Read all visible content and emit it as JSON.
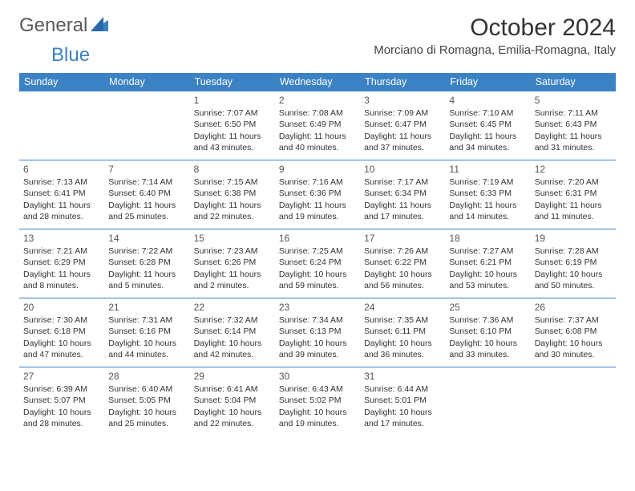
{
  "logo": {
    "text1": "General",
    "text2": "Blue"
  },
  "title": "October 2024",
  "location": "Morciano di Romagna, Emilia-Romagna, Italy",
  "colors": {
    "header_bg": "#3b82c4",
    "header_text": "#ffffff",
    "row_border": "#3b82c4",
    "body_text": "#333333",
    "logo_gray": "#5a5a5a",
    "logo_blue": "#3b82c4",
    "background": "#ffffff"
  },
  "fonts": {
    "month_title_size": 30,
    "location_size": 15,
    "day_header_size": 12.5,
    "daynum_size": 12,
    "cell_size": 10.5
  },
  "day_headers": [
    "Sunday",
    "Monday",
    "Tuesday",
    "Wednesday",
    "Thursday",
    "Friday",
    "Saturday"
  ],
  "weeks": [
    [
      null,
      null,
      {
        "n": "1",
        "sr": "Sunrise: 7:07 AM",
        "ss": "Sunset: 6:50 PM",
        "dl": "Daylight: 11 hours and 43 minutes."
      },
      {
        "n": "2",
        "sr": "Sunrise: 7:08 AM",
        "ss": "Sunset: 6:49 PM",
        "dl": "Daylight: 11 hours and 40 minutes."
      },
      {
        "n": "3",
        "sr": "Sunrise: 7:09 AM",
        "ss": "Sunset: 6:47 PM",
        "dl": "Daylight: 11 hours and 37 minutes."
      },
      {
        "n": "4",
        "sr": "Sunrise: 7:10 AM",
        "ss": "Sunset: 6:45 PM",
        "dl": "Daylight: 11 hours and 34 minutes."
      },
      {
        "n": "5",
        "sr": "Sunrise: 7:11 AM",
        "ss": "Sunset: 6:43 PM",
        "dl": "Daylight: 11 hours and 31 minutes."
      }
    ],
    [
      {
        "n": "6",
        "sr": "Sunrise: 7:13 AM",
        "ss": "Sunset: 6:41 PM",
        "dl": "Daylight: 11 hours and 28 minutes."
      },
      {
        "n": "7",
        "sr": "Sunrise: 7:14 AM",
        "ss": "Sunset: 6:40 PM",
        "dl": "Daylight: 11 hours and 25 minutes."
      },
      {
        "n": "8",
        "sr": "Sunrise: 7:15 AM",
        "ss": "Sunset: 6:38 PM",
        "dl": "Daylight: 11 hours and 22 minutes."
      },
      {
        "n": "9",
        "sr": "Sunrise: 7:16 AM",
        "ss": "Sunset: 6:36 PM",
        "dl": "Daylight: 11 hours and 19 minutes."
      },
      {
        "n": "10",
        "sr": "Sunrise: 7:17 AM",
        "ss": "Sunset: 6:34 PM",
        "dl": "Daylight: 11 hours and 17 minutes."
      },
      {
        "n": "11",
        "sr": "Sunrise: 7:19 AM",
        "ss": "Sunset: 6:33 PM",
        "dl": "Daylight: 11 hours and 14 minutes."
      },
      {
        "n": "12",
        "sr": "Sunrise: 7:20 AM",
        "ss": "Sunset: 6:31 PM",
        "dl": "Daylight: 11 hours and 11 minutes."
      }
    ],
    [
      {
        "n": "13",
        "sr": "Sunrise: 7:21 AM",
        "ss": "Sunset: 6:29 PM",
        "dl": "Daylight: 11 hours and 8 minutes."
      },
      {
        "n": "14",
        "sr": "Sunrise: 7:22 AM",
        "ss": "Sunset: 6:28 PM",
        "dl": "Daylight: 11 hours and 5 minutes."
      },
      {
        "n": "15",
        "sr": "Sunrise: 7:23 AM",
        "ss": "Sunset: 6:26 PM",
        "dl": "Daylight: 11 hours and 2 minutes."
      },
      {
        "n": "16",
        "sr": "Sunrise: 7:25 AM",
        "ss": "Sunset: 6:24 PM",
        "dl": "Daylight: 10 hours and 59 minutes."
      },
      {
        "n": "17",
        "sr": "Sunrise: 7:26 AM",
        "ss": "Sunset: 6:22 PM",
        "dl": "Daylight: 10 hours and 56 minutes."
      },
      {
        "n": "18",
        "sr": "Sunrise: 7:27 AM",
        "ss": "Sunset: 6:21 PM",
        "dl": "Daylight: 10 hours and 53 minutes."
      },
      {
        "n": "19",
        "sr": "Sunrise: 7:28 AM",
        "ss": "Sunset: 6:19 PM",
        "dl": "Daylight: 10 hours and 50 minutes."
      }
    ],
    [
      {
        "n": "20",
        "sr": "Sunrise: 7:30 AM",
        "ss": "Sunset: 6:18 PM",
        "dl": "Daylight: 10 hours and 47 minutes."
      },
      {
        "n": "21",
        "sr": "Sunrise: 7:31 AM",
        "ss": "Sunset: 6:16 PM",
        "dl": "Daylight: 10 hours and 44 minutes."
      },
      {
        "n": "22",
        "sr": "Sunrise: 7:32 AM",
        "ss": "Sunset: 6:14 PM",
        "dl": "Daylight: 10 hours and 42 minutes."
      },
      {
        "n": "23",
        "sr": "Sunrise: 7:34 AM",
        "ss": "Sunset: 6:13 PM",
        "dl": "Daylight: 10 hours and 39 minutes."
      },
      {
        "n": "24",
        "sr": "Sunrise: 7:35 AM",
        "ss": "Sunset: 6:11 PM",
        "dl": "Daylight: 10 hours and 36 minutes."
      },
      {
        "n": "25",
        "sr": "Sunrise: 7:36 AM",
        "ss": "Sunset: 6:10 PM",
        "dl": "Daylight: 10 hours and 33 minutes."
      },
      {
        "n": "26",
        "sr": "Sunrise: 7:37 AM",
        "ss": "Sunset: 6:08 PM",
        "dl": "Daylight: 10 hours and 30 minutes."
      }
    ],
    [
      {
        "n": "27",
        "sr": "Sunrise: 6:39 AM",
        "ss": "Sunset: 5:07 PM",
        "dl": "Daylight: 10 hours and 28 minutes."
      },
      {
        "n": "28",
        "sr": "Sunrise: 6:40 AM",
        "ss": "Sunset: 5:05 PM",
        "dl": "Daylight: 10 hours and 25 minutes."
      },
      {
        "n": "29",
        "sr": "Sunrise: 6:41 AM",
        "ss": "Sunset: 5:04 PM",
        "dl": "Daylight: 10 hours and 22 minutes."
      },
      {
        "n": "30",
        "sr": "Sunrise: 6:43 AM",
        "ss": "Sunset: 5:02 PM",
        "dl": "Daylight: 10 hours and 19 minutes."
      },
      {
        "n": "31",
        "sr": "Sunrise: 6:44 AM",
        "ss": "Sunset: 5:01 PM",
        "dl": "Daylight: 10 hours and 17 minutes."
      },
      null,
      null
    ]
  ]
}
